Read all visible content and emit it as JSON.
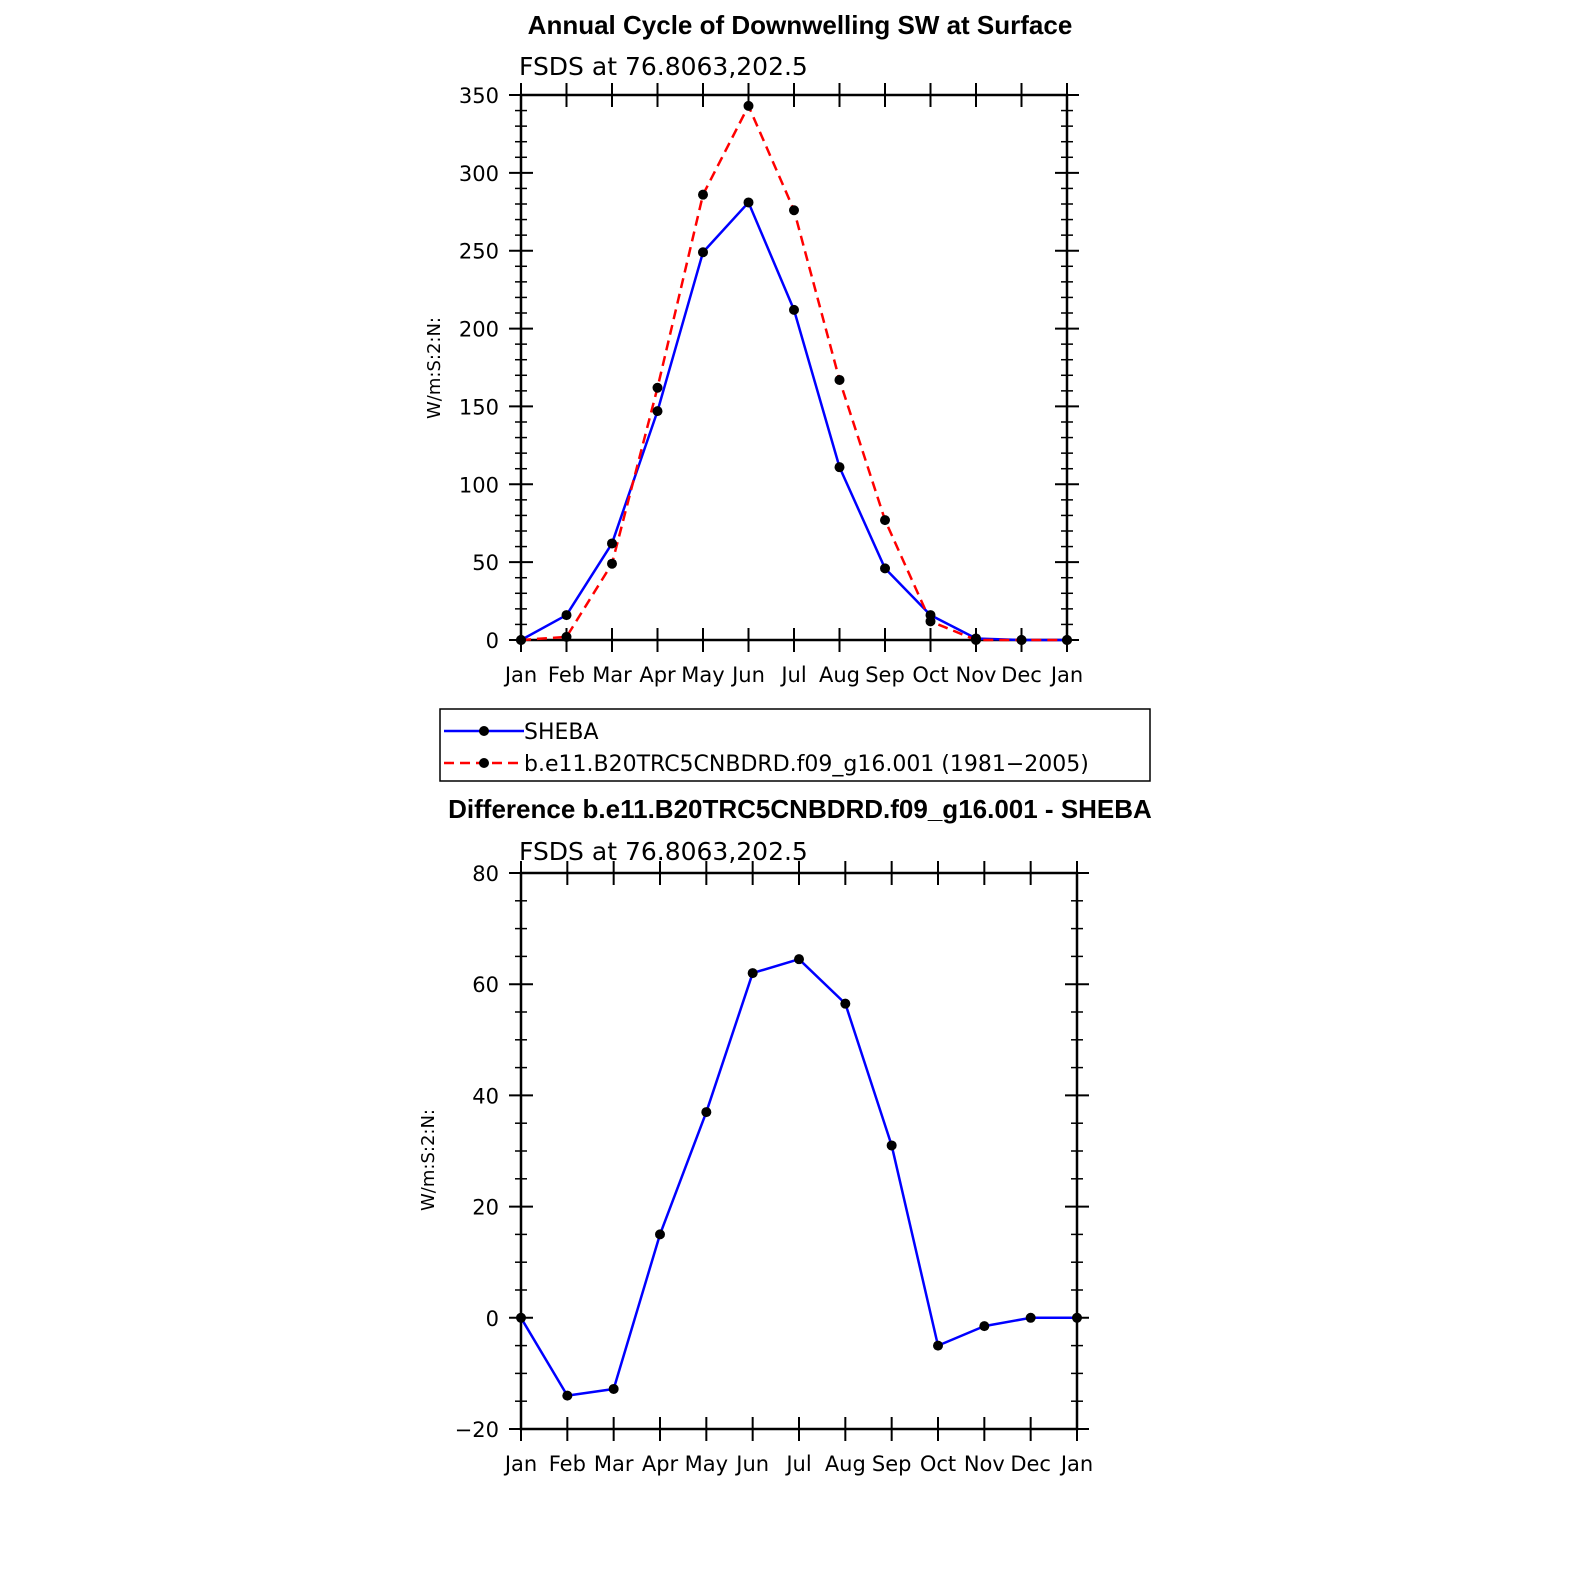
{
  "chart_data": [
    {
      "type": "line",
      "title": "Annual Cycle of Downwelling SW at Surface",
      "subtitle": "FSDS at 76.8063,202.5",
      "xlabel": "",
      "ylabel": "W/m:S:2:N:",
      "categories": [
        "Jan",
        "Feb",
        "Mar",
        "Apr",
        "May",
        "Jun",
        "Jul",
        "Aug",
        "Sep",
        "Oct",
        "Nov",
        "Dec",
        "Jan"
      ],
      "ylim": [
        0,
        350
      ],
      "yticks": [
        0,
        50,
        100,
        150,
        200,
        250,
        300,
        350
      ],
      "grid": false,
      "legend_position": "below",
      "series": [
        {
          "name": "SHEBA",
          "color": "#0000ff",
          "dash": "solid",
          "marker": "filled-circle",
          "values": [
            0,
            16,
            62,
            147,
            249,
            281,
            212,
            111,
            46,
            16,
            1,
            0,
            0
          ]
        },
        {
          "name": "b.e11.B20TRC5CNBDRD.f09_g16.001 (1981−2005)",
          "color": "#ff0000",
          "dash": "dashed",
          "marker": "filled-circle",
          "values": [
            0,
            2,
            49,
            162,
            286,
            343,
            276,
            167,
            77,
            12,
            0,
            0,
            0
          ]
        }
      ]
    },
    {
      "type": "line",
      "title": "Difference b.e11.B20TRC5CNBDRD.f09_g16.001 - SHEBA",
      "subtitle": "FSDS at 76.8063,202.5",
      "xlabel": "",
      "ylabel": "W/m:S:2:N:",
      "categories": [
        "Jan",
        "Feb",
        "Mar",
        "Apr",
        "May",
        "Jun",
        "Jul",
        "Aug",
        "Sep",
        "Oct",
        "Nov",
        "Dec",
        "Jan"
      ],
      "ylim": [
        -20,
        80
      ],
      "yticks": [
        -20,
        0,
        20,
        40,
        60,
        80
      ],
      "ytick_labels": [
        "−20",
        "0",
        "20",
        "40",
        "60",
        "80"
      ],
      "grid": false,
      "series": [
        {
          "color": "#0000ff",
          "dash": "solid",
          "marker": "filled-circle",
          "values": [
            0,
            -14,
            -12.8,
            15,
            37,
            62,
            64.5,
            56.5,
            31,
            -5,
            -1.5,
            0,
            0
          ]
        }
      ]
    }
  ]
}
